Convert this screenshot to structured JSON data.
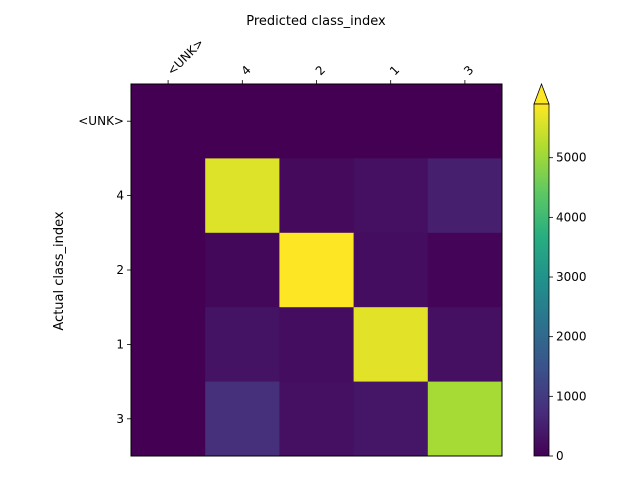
{
  "chart_data": {
    "type": "heatmap",
    "xlabel": "Predicted class_index",
    "ylabel": "Actual class_index",
    "x_categories": [
      "<UNK>",
      "4",
      "2",
      "1",
      "3"
    ],
    "y_categories": [
      "<UNK>",
      "4",
      "2",
      "1",
      "3"
    ],
    "values": [
      [
        0,
        0,
        0,
        0,
        0
      ],
      [
        0,
        5600,
        150,
        250,
        500
      ],
      [
        0,
        120,
        5900,
        200,
        50
      ],
      [
        0,
        300,
        200,
        5650,
        250
      ],
      [
        0,
        800,
        250,
        350,
        5100
      ]
    ],
    "colorbar": {
      "colormap": "viridis",
      "range": [
        0,
        5900
      ],
      "ticks": [
        0,
        1000,
        2000,
        3000,
        4000,
        5000
      ],
      "extend": "max"
    },
    "grid": false
  }
}
